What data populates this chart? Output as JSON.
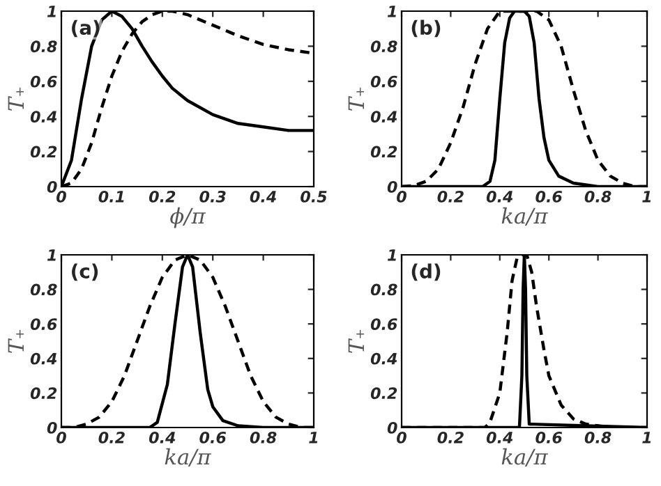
{
  "chart_data": [
    {
      "type": "line",
      "xlabel": "ϕ/π",
      "ylabel": "T₊",
      "annotations": [
        "(a)"
      ],
      "xlim": [
        0,
        0.5
      ],
      "xticks": [
        0,
        0.1,
        0.2,
        0.3,
        0.4,
        0.5
      ],
      "ylim": [
        0,
        1
      ],
      "yticks": [
        0,
        0.2,
        0.4,
        0.6,
        0.8,
        1
      ],
      "series": [
        {
          "color": "#000000",
          "line_style": "solid",
          "x": [
            0,
            0.02,
            0.04,
            0.06,
            0.08,
            0.1,
            0.12,
            0.14,
            0.16,
            0.18,
            0.2,
            0.22,
            0.25,
            0.3,
            0.35,
            0.4,
            0.45,
            0.5
          ],
          "values": [
            0,
            0.15,
            0.5,
            0.8,
            0.95,
            1.0,
            0.97,
            0.9,
            0.8,
            0.71,
            0.63,
            0.56,
            0.49,
            0.41,
            0.36,
            0.34,
            0.32,
            0.32
          ]
        },
        {
          "color": "#000000",
          "line_style": "dashed",
          "x": [
            0,
            0.02,
            0.04,
            0.06,
            0.08,
            0.1,
            0.12,
            0.14,
            0.16,
            0.18,
            0.2,
            0.22,
            0.25,
            0.3,
            0.35,
            0.4,
            0.45,
            0.5
          ],
          "values": [
            0,
            0.02,
            0.1,
            0.25,
            0.45,
            0.63,
            0.77,
            0.87,
            0.94,
            0.98,
            1.0,
            1.0,
            0.98,
            0.92,
            0.86,
            0.81,
            0.78,
            0.76
          ]
        }
      ]
    },
    {
      "type": "line",
      "xlabel": "ka/π",
      "ylabel": "T₊",
      "annotations": [
        "(b)"
      ],
      "xlim": [
        0,
        1
      ],
      "xticks": [
        0,
        0.2,
        0.4,
        0.6,
        0.8,
        1
      ],
      "ylim": [
        0,
        1
      ],
      "yticks": [
        0,
        0.2,
        0.4,
        0.6,
        0.8,
        1
      ],
      "series": [
        {
          "color": "#000000",
          "line_style": "solid",
          "x": [
            0,
            0.33,
            0.36,
            0.38,
            0.4,
            0.42,
            0.44,
            0.46,
            0.5,
            0.52,
            0.54,
            0.56,
            0.58,
            0.6,
            0.64,
            0.7,
            0.8,
            1
          ],
          "values": [
            0,
            0,
            0.03,
            0.15,
            0.5,
            0.82,
            0.96,
            1.0,
            1.0,
            0.97,
            0.82,
            0.5,
            0.28,
            0.15,
            0.06,
            0.02,
            0,
            0
          ]
        },
        {
          "color": "#000000",
          "line_style": "dashed",
          "x": [
            0,
            0.05,
            0.1,
            0.15,
            0.2,
            0.25,
            0.3,
            0.35,
            0.4,
            0.45,
            0.5,
            0.55,
            0.6,
            0.65,
            0.7,
            0.75,
            0.8,
            0.85,
            0.9,
            0.95,
            1
          ],
          "values": [
            0,
            0.005,
            0.03,
            0.1,
            0.25,
            0.45,
            0.7,
            0.9,
            1.0,
            1.0,
            1.0,
            1.0,
            0.95,
            0.8,
            0.55,
            0.32,
            0.15,
            0.06,
            0.02,
            0,
            0
          ]
        }
      ]
    },
    {
      "type": "line",
      "xlabel": "ka/π",
      "ylabel": "T₊",
      "annotations": [
        "(c)"
      ],
      "xlim": [
        0,
        1
      ],
      "xticks": [
        0,
        0.2,
        0.4,
        0.6,
        0.8,
        1
      ],
      "ylim": [
        0,
        1
      ],
      "yticks": [
        0,
        0.2,
        0.4,
        0.6,
        0.8,
        1
      ],
      "series": [
        {
          "color": "#000000",
          "line_style": "solid",
          "x": [
            0,
            0.35,
            0.38,
            0.42,
            0.45,
            0.48,
            0.5,
            0.52,
            0.55,
            0.58,
            0.6,
            0.64,
            0.7,
            0.8,
            1
          ],
          "values": [
            0,
            0,
            0.03,
            0.25,
            0.6,
            0.93,
            1.0,
            0.93,
            0.55,
            0.22,
            0.12,
            0.04,
            0.01,
            0,
            0
          ]
        },
        {
          "color": "#000000",
          "line_style": "dashed",
          "x": [
            0,
            0.05,
            0.1,
            0.15,
            0.2,
            0.25,
            0.3,
            0.35,
            0.4,
            0.45,
            0.5,
            0.55,
            0.6,
            0.65,
            0.7,
            0.75,
            0.8,
            0.85,
            0.9,
            0.95,
            1
          ],
          "values": [
            0,
            0,
            0.02,
            0.06,
            0.15,
            0.3,
            0.5,
            0.7,
            0.87,
            0.97,
            1.0,
            0.97,
            0.87,
            0.7,
            0.5,
            0.3,
            0.15,
            0.06,
            0.02,
            0,
            0
          ]
        }
      ]
    },
    {
      "type": "line",
      "xlabel": "ka/π",
      "ylabel": "T₊",
      "annotations": [
        "(d)"
      ],
      "xlim": [
        0,
        1
      ],
      "xticks": [
        0,
        0.2,
        0.4,
        0.6,
        0.8,
        1
      ],
      "ylim": [
        0,
        1
      ],
      "yticks": [
        0,
        0.2,
        0.4,
        0.6,
        0.8,
        1
      ],
      "series": [
        {
          "color": "#000000",
          "line_style": "solid",
          "x": [
            0,
            0.48,
            0.49,
            0.495,
            0.5,
            0.505,
            0.51,
            0.52,
            1
          ],
          "values": [
            0,
            0,
            0.3,
            0.8,
            1.0,
            0.8,
            0.3,
            0.02,
            0
          ]
        },
        {
          "color": "#000000",
          "line_style": "dashed",
          "x": [
            0,
            0.34,
            0.36,
            0.4,
            0.43,
            0.45,
            0.47,
            0.49,
            0.51,
            0.53,
            0.55,
            0.58,
            0.6,
            0.65,
            0.7,
            0.75,
            0.8,
            0.85,
            1
          ],
          "values": [
            0,
            0,
            0.03,
            0.2,
            0.55,
            0.85,
            0.98,
            1.0,
            1.0,
            0.9,
            0.7,
            0.45,
            0.3,
            0.13,
            0.05,
            0.02,
            0.01,
            0,
            0
          ]
        }
      ]
    }
  ]
}
